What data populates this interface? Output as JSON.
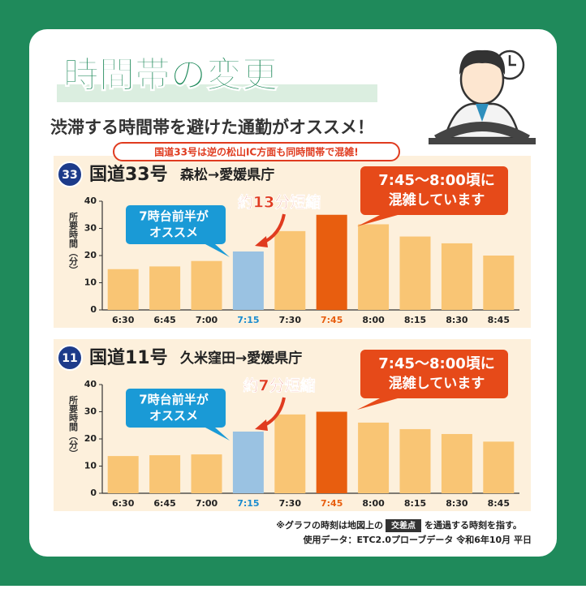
{
  "header": {
    "title": "時間帯の変更",
    "subtitle": "渋滞する時間帯を避けた通勤がオススメ！"
  },
  "chart_data": [
    {
      "type": "bar",
      "route_number": "33",
      "title": "国道33号",
      "section": "森松→愛媛県庁",
      "warning": "国道33号は逆の松山IC方面も同時間帯で混雑!",
      "ylabel": "所要時間（分）",
      "reduction": "約13分短縮",
      "recommend": [
        "7時台前半が",
        "オススメ"
      ],
      "congestion": [
        "7:45～8:00頃に",
        "混雑しています"
      ],
      "categories": [
        "6:30",
        "6:45",
        "7:00",
        "7:15",
        "7:30",
        "7:45",
        "8:00",
        "8:15",
        "8:30",
        "8:45"
      ],
      "values": [
        15,
        16,
        18,
        21.5,
        29,
        35,
        31.5,
        27,
        24.5,
        20
      ],
      "color": "#f9c574",
      "colors": [
        "#f9c574",
        "#f9c574",
        "#f9c574",
        "#9ac2e2",
        "#f9c574",
        "#e85e0f",
        "#f9c574",
        "#f9c574",
        "#f9c574",
        "#f9c574"
      ],
      "ylim": [
        0,
        40
      ],
      "yticks": [
        0,
        10,
        20,
        30,
        40
      ],
      "grid": false
    },
    {
      "type": "bar",
      "route_number": "11",
      "title": "国道11号",
      "section": "久米窪田→愛媛県庁",
      "ylabel": "所要時間（分）",
      "reduction": "約7分短縮",
      "recommend": [
        "7時台前半が",
        "オススメ"
      ],
      "congestion": [
        "7:45～8:00頃に",
        "混雑しています"
      ],
      "categories": [
        "6:30",
        "6:45",
        "7:00",
        "7:15",
        "7:30",
        "7:45",
        "8:00",
        "8:15",
        "8:30",
        "8:45"
      ],
      "values": [
        13.7,
        14,
        14.3,
        22.7,
        29,
        30,
        26,
        23.6,
        21.8,
        19
      ],
      "color": "#f9c574",
      "colors": [
        "#f9c574",
        "#f9c574",
        "#f9c574",
        "#9ac2e2",
        "#f9c574",
        "#e85e0f",
        "#f9c574",
        "#f9c574",
        "#f9c574",
        "#f9c574"
      ],
      "ylim": [
        0,
        40
      ],
      "yticks": [
        0,
        10,
        20,
        30,
        40
      ],
      "grid": false
    }
  ],
  "footnote": {
    "text_before": "※グラフの時刻は地図上の",
    "badge": "交差点",
    "text_after": "を通過する時刻を指す。",
    "source": "使用データ：ETC2.0プローブデータ 令和6年10月 平日"
  }
}
